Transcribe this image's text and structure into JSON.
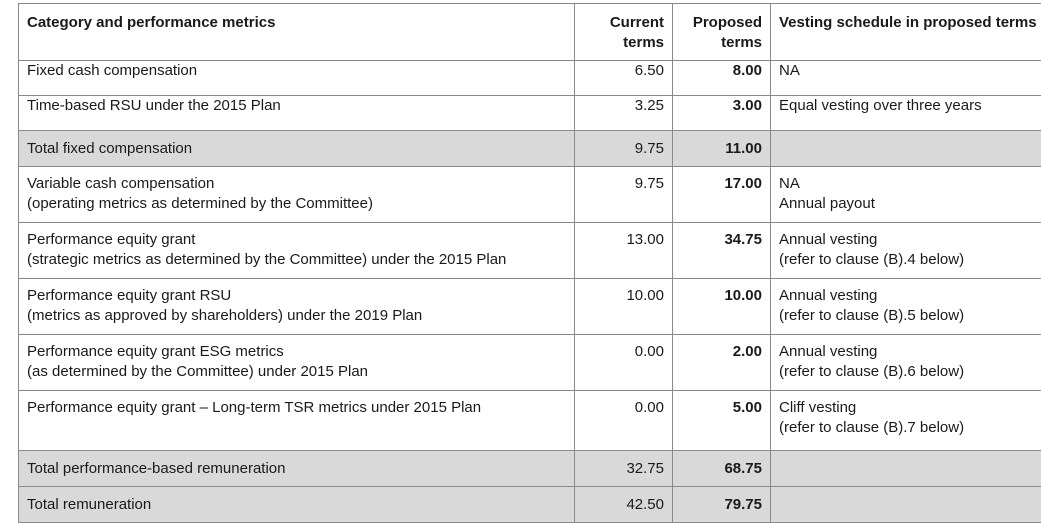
{
  "headers": {
    "category": "Category and performance metrics",
    "current_1": "Current",
    "current_2": "terms",
    "proposed_1": "Proposed",
    "proposed_2": "terms",
    "vesting": "Vesting schedule in proposed terms"
  },
  "rows": [
    {
      "cat1": "Fixed cash compensation",
      "cat2": "",
      "current": "6.50",
      "proposed": "8.00",
      "vest1": "NA",
      "vest2": ""
    },
    {
      "cat1": "Time-based RSU under the 2015 Plan",
      "cat2": "",
      "current": "3.25",
      "proposed": "3.00",
      "vest1": "Equal vesting over three years",
      "vest2": ""
    },
    {
      "cat1": "Total fixed compensation",
      "cat2": "",
      "current": "9.75",
      "proposed": "11.00",
      "vest1": "",
      "vest2": ""
    },
    {
      "cat1": "Variable cash compensation",
      "cat2": "(operating metrics as determined by the Committee)",
      "current": "9.75",
      "proposed": "17.00",
      "vest1": "NA",
      "vest2": "Annual payout"
    },
    {
      "cat1": "Performance equity grant",
      "cat2": "(strategic metrics as determined by the Committee) under the 2015 Plan",
      "current": "13.00",
      "proposed": "34.75",
      "vest1": "Annual vesting",
      "vest2": "(refer to clause (B).4 below)"
    },
    {
      "cat1": "Performance equity grant RSU",
      "cat2": "(metrics as approved by shareholders) under the 2019 Plan",
      "current": "10.00",
      "proposed": "10.00",
      "vest1": "Annual vesting",
      "vest2": "(refer to clause (B).5 below)"
    },
    {
      "cat1": "Performance equity grant ESG metrics",
      "cat2": "(as determined by the Committee) under 2015 Plan",
      "current": "0.00",
      "proposed": "2.00",
      "vest1": "Annual vesting",
      "vest2": "(refer to clause (B).6 below)"
    },
    {
      "cat1": "Performance equity grant – Long-term TSR metrics under 2015 Plan",
      "cat2": "",
      "current": "0.00",
      "proposed": "5.00",
      "vest1": "Cliff vesting",
      "vest2": "(refer to clause (B).7 below)"
    },
    {
      "cat1": "Total performance-based remuneration",
      "cat2": "",
      "current": "32.75",
      "proposed": "68.75",
      "vest1": "",
      "vest2": ""
    },
    {
      "cat1": "Total remuneration",
      "cat2": "",
      "current": "42.50",
      "proposed": "79.75",
      "vest1": "",
      "vest2": ""
    }
  ],
  "colors": {
    "summary_row_bg": "#d9d9d9",
    "border": "#8a8a8a"
  }
}
